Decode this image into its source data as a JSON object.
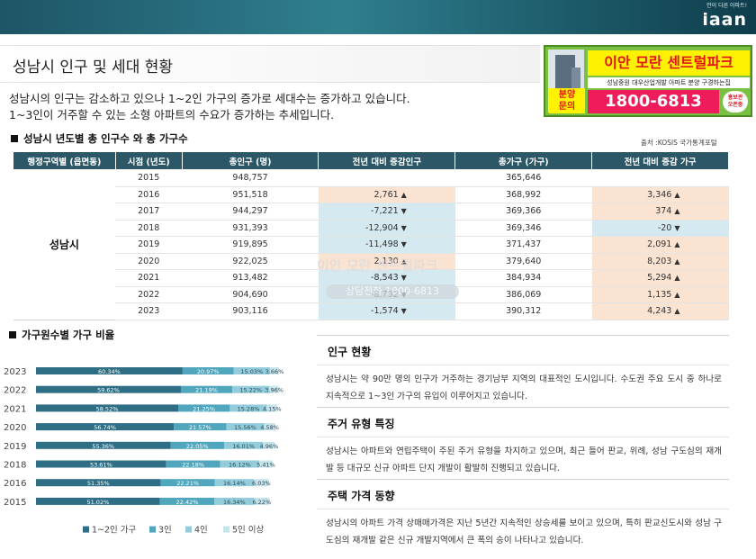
{
  "brand": {
    "tagline": "안이 다른 아파트!",
    "logo": "iaan"
  },
  "title": "성남시 인구 및 세대 현황",
  "ad": {
    "name": "이안 모란 센트럴파크",
    "sub": "성남중원  대우산업개발 아파트 분양 구경하는집",
    "ask_line1": "분양",
    "ask_line2": "문의",
    "phone": "1800-6813",
    "badge_line1": "홍보관",
    "badge_line2": "오픈중"
  },
  "intro": {
    "line1": "성남시의 인구는 감소하고 있으나 1~2인 가구의 증가로 세대수는 증가하고 있습니다.",
    "line2": "1~3인이 거주할 수 있는 소형 아파트의 수요가 증가하는 추세입니다."
  },
  "table_section": {
    "title": "성남시 년도별 총 인구수 와 총 가구수",
    "source": "출처 :KOSIS 국가통계포털"
  },
  "table": {
    "headers": [
      "행정구역별 (읍면동)",
      "시점 (년도)",
      "총인구 (명)",
      "전년 대비 증감인구",
      "총가구 (가구)",
      "전년 대비 증감 가구"
    ],
    "region": "성남시",
    "rows": [
      {
        "year": "2015",
        "pop": "948,757",
        "pop_change": "",
        "pop_dir": "",
        "hh": "365,646",
        "hh_change": "",
        "hh_dir": ""
      },
      {
        "year": "2016",
        "pop": "951,518",
        "pop_change": "2,761",
        "pop_dir": "up",
        "hh": "368,992",
        "hh_change": "3,346",
        "hh_dir": "up"
      },
      {
        "year": "2017",
        "pop": "944,297",
        "pop_change": "-7,221",
        "pop_dir": "down",
        "hh": "369,366",
        "hh_change": "374",
        "hh_dir": "up"
      },
      {
        "year": "2018",
        "pop": "931,393",
        "pop_change": "-12,904",
        "pop_dir": "down",
        "hh": "369,346",
        "hh_change": "-20",
        "hh_dir": "down"
      },
      {
        "year": "2019",
        "pop": "919,895",
        "pop_change": "-11,498",
        "pop_dir": "down",
        "hh": "371,437",
        "hh_change": "2,091",
        "hh_dir": "up"
      },
      {
        "year": "2020",
        "pop": "922,025",
        "pop_change": "2,130",
        "pop_dir": "up",
        "hh": "379,640",
        "hh_change": "8,203",
        "hh_dir": "up"
      },
      {
        "year": "2021",
        "pop": "913,482",
        "pop_change": "-8,543",
        "pop_dir": "down",
        "hh": "384,934",
        "hh_change": "5,294",
        "hh_dir": "up"
      },
      {
        "year": "2022",
        "pop": "904,690",
        "pop_change": "-8,792",
        "pop_dir": "down",
        "hh": "386,069",
        "hh_change": "1,135",
        "hh_dir": "up"
      },
      {
        "year": "2023",
        "pop": "903,116",
        "pop_change": "-1,574",
        "pop_dir": "down",
        "hh": "390,312",
        "hh_change": "4,243",
        "hh_dir": "up"
      }
    ]
  },
  "watermark": {
    "line1": "이안 모란 센트럴파크",
    "line2": "상담전화 1800-6813"
  },
  "chart_section": {
    "title": "가구원수별 가구 비율"
  },
  "chart_data": {
    "type": "bar",
    "stacked": true,
    "orientation": "horizontal",
    "categories": [
      "2023",
      "2022",
      "2021",
      "2020",
      "2019",
      "2018",
      "2016",
      "2015"
    ],
    "series": [
      {
        "name": "1~2인 가구",
        "color": "#2e6f86",
        "values": [
          60.34,
          59.62,
          58.52,
          56.74,
          55.36,
          53.61,
          51.35,
          51.02
        ],
        "labels": [
          "60.34%",
          "59.62%",
          "58.52%",
          "56.74%",
          "55.36%",
          "53.61%",
          "51.35%",
          "51.02%"
        ]
      },
      {
        "name": "3인",
        "color": "#4fa6bd",
        "values": [
          20.97,
          21.19,
          21.25,
          21.57,
          22.05,
          22.18,
          22.21,
          22.42
        ],
        "labels": [
          "20.97%",
          "21.19%",
          "21.25%",
          "21.57%",
          "22.05%",
          "22.18%",
          "22.21%",
          "22.42%"
        ]
      },
      {
        "name": "4인",
        "color": "#93cddc",
        "values": [
          15.03,
          15.22,
          15.28,
          15.56,
          16.01,
          16.12,
          16.14,
          16.34
        ],
        "labels": [
          "15.03%",
          "15.22%",
          "15.28%",
          "15.56%",
          "16.01%",
          "16.12%",
          "16.14%",
          "16.34%"
        ]
      },
      {
        "name": "5인 이상",
        "color": "#c7e4ec",
        "values": [
          3.66,
          3.96,
          4.15,
          4.58,
          4.96,
          5.41,
          6.03,
          6.22
        ],
        "labels": [
          "3.66%",
          "3.96%",
          "4.15%",
          "4.58%",
          "4.96%",
          "5.41%",
          "6.03%",
          "6.22%"
        ]
      }
    ],
    "legend_position": "bottom"
  },
  "info": [
    {
      "title": "인구 현황",
      "body": "성남시는 약 90만 명의 인구가 거주하는 경기남부 지역의 대표적인 도시입니다. 수도권 주요 도시 중 하나로 지속적으로 1~3인 가구의 유입이 이루어지고 있습니다."
    },
    {
      "title": "주거 유형 특징",
      "body": "성남시는 아파트와 연립주택이 주된 주거 유형을 차지하고 있으며, 최근 들어 판교, 위례, 성남 구도심의 재개발 등 대규모 신규 아파트 단지 개발이 활발히 진행되고 있습니다."
    },
    {
      "title": "주택 가격 동향",
      "body": "성남시의 아파트 가격 상매매가격은 지난 5년간 지속적인 상승세를 보이고 있으며, 특히 판교신도시와 성남 구도심의 재개발 같은 신규 개발지역에서 큰 폭의 승이 나타나고 있습니다."
    }
  ]
}
